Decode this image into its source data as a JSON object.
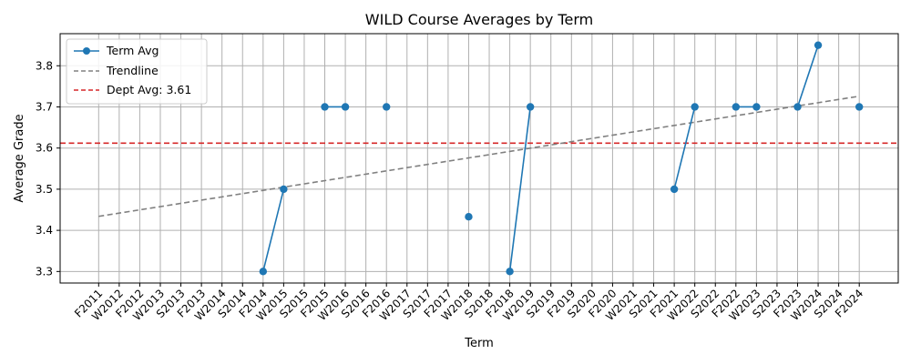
{
  "chart_data": {
    "type": "line",
    "title": "WILD Course Averages by Term",
    "xlabel": "Term",
    "ylabel": "Average Grade",
    "categories": [
      "F2011",
      "W2012",
      "F2012",
      "W2013",
      "S2013",
      "F2013",
      "W2014",
      "S2014",
      "F2014",
      "W2015",
      "S2015",
      "F2015",
      "W2016",
      "S2016",
      "F2016",
      "W2017",
      "S2017",
      "F2017",
      "W2018",
      "S2018",
      "F2018",
      "W2019",
      "S2019",
      "F2019",
      "S2020",
      "F2020",
      "W2021",
      "S2021",
      "F2021",
      "W2022",
      "S2022",
      "F2022",
      "W2023",
      "S2023",
      "F2023",
      "W2024",
      "S2024",
      "F2024"
    ],
    "series": [
      {
        "name": "Term Avg",
        "color": "#1f77b4",
        "values": [
          null,
          null,
          null,
          null,
          null,
          null,
          null,
          null,
          3.3,
          3.5,
          null,
          3.7,
          3.7,
          null,
          3.7,
          null,
          null,
          null,
          3.433,
          null,
          3.3,
          3.7,
          null,
          null,
          null,
          null,
          null,
          null,
          3.5,
          3.7,
          null,
          3.7,
          3.7,
          null,
          3.7,
          3.85,
          null,
          3.7
        ]
      }
    ],
    "trendline": {
      "name": "Trendline",
      "color": "#808080",
      "start": 3.434,
      "end": 3.726
    },
    "reference_line": {
      "name": "Dept Avg: 3.61",
      "value": 3.612,
      "color": "#d62728"
    },
    "ylim": [
      3.272,
      3.878
    ],
    "yticks": [
      3.3,
      3.4,
      3.5,
      3.6,
      3.7,
      3.8
    ],
    "grid": true,
    "legend_position": "top-left"
  }
}
